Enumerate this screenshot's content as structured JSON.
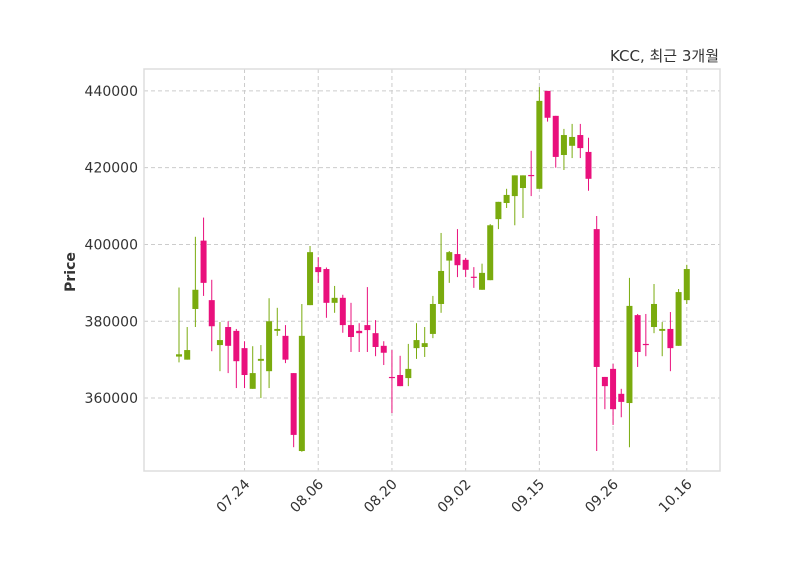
{
  "chart_data": {
    "type": "candlestick",
    "title": "KCC, 최근 3개월",
    "ylabel": "Price",
    "xlabel": "",
    "ylim": [
      341000,
      445700
    ],
    "yticks": [
      360000,
      380000,
      400000,
      420000,
      440000
    ],
    "grid": true,
    "colors": {
      "up": "#7aab0e",
      "down": "#e9107c",
      "grid": "#cccccc",
      "frame": "#dddddd"
    },
    "xticks": [
      {
        "index": 8,
        "label": "07.24"
      },
      {
        "index": 17,
        "label": "08.06"
      },
      {
        "index": 26,
        "label": "08.20"
      },
      {
        "index": 35,
        "label": "09.02"
      },
      {
        "index": 44,
        "label": "09.15"
      },
      {
        "index": 53,
        "label": "09.26"
      },
      {
        "index": 62,
        "label": "10.16"
      }
    ],
    "candles": [
      [
        370800,
        388800,
        369300,
        371400
      ],
      [
        370000,
        378500,
        370000,
        372500
      ],
      [
        383200,
        402000,
        378500,
        388200
      ],
      [
        401000,
        407000,
        386600,
        390000
      ],
      [
        385500,
        390800,
        372200,
        378700
      ],
      [
        373800,
        379800,
        367000,
        375100
      ],
      [
        378500,
        380000,
        366500,
        373600
      ],
      [
        377500,
        378000,
        362600,
        369600
      ],
      [
        373000,
        374800,
        362600,
        366000
      ],
      [
        362400,
        373500,
        362400,
        366500
      ],
      [
        369700,
        373800,
        360000,
        370200
      ],
      [
        367000,
        386000,
        362600,
        380000
      ],
      [
        377500,
        383500,
        376200,
        378000
      ],
      [
        376200,
        379000,
        369100,
        370000
      ],
      [
        366500,
        366500,
        347200,
        350400
      ],
      [
        346200,
        384500,
        346000,
        376200
      ],
      [
        384200,
        399600,
        384200,
        398000
      ],
      [
        394100,
        396700,
        390000,
        392800
      ],
      [
        393600,
        394000,
        380900,
        384800
      ],
      [
        384800,
        389200,
        382200,
        386100
      ],
      [
        386100,
        386900,
        377000,
        379000
      ],
      [
        379000,
        384800,
        372000,
        375900
      ],
      [
        377500,
        379500,
        372000,
        376900
      ],
      [
        379000,
        388900,
        372000,
        377700
      ],
      [
        376900,
        380300,
        370900,
        373300
      ],
      [
        373600,
        374800,
        368600,
        371800
      ],
      [
        365500,
        372500,
        356100,
        365300
      ],
      [
        366000,
        371000,
        363100,
        363100
      ],
      [
        365200,
        374100,
        363100,
        367600
      ],
      [
        373000,
        379500,
        370200,
        375100
      ],
      [
        373300,
        378500,
        370700,
        374300
      ],
      [
        376700,
        386600,
        375600,
        384500
      ],
      [
        384500,
        403000,
        382200,
        393100
      ],
      [
        395800,
        398300,
        390000,
        398000
      ],
      [
        397500,
        404000,
        391500,
        394600
      ],
      [
        396000,
        396500,
        391500,
        393400
      ],
      [
        391600,
        394100,
        388700,
        391500
      ],
      [
        388200,
        395000,
        388200,
        392600
      ],
      [
        390700,
        405300,
        390700,
        405000
      ],
      [
        406600,
        411100,
        404000,
        411100
      ],
      [
        410800,
        414500,
        409500,
        412900
      ],
      [
        412600,
        418000,
        405000,
        418000
      ],
      [
        414700,
        418000,
        406900,
        418000
      ],
      [
        418100,
        424400,
        412600,
        418000
      ],
      [
        414500,
        441000,
        414500,
        437400
      ],
      [
        440000,
        440000,
        432000,
        433000
      ],
      [
        433500,
        433500,
        420000,
        422800
      ],
      [
        423300,
        430100,
        419400,
        428500
      ],
      [
        425700,
        431400,
        422500,
        428000
      ],
      [
        428500,
        431400,
        422500,
        425100
      ],
      [
        424100,
        427800,
        414000,
        417100
      ],
      [
        404000,
        407400,
        346200,
        368100
      ],
      [
        365500,
        365500,
        357100,
        363100
      ],
      [
        367600,
        368900,
        353000,
        357100
      ],
      [
        361100,
        362400,
        355000,
        359000
      ],
      [
        358700,
        391300,
        347200,
        384000
      ],
      [
        381600,
        381900,
        368100,
        372000
      ],
      [
        374100,
        381900,
        370900,
        374000
      ],
      [
        378500,
        389700,
        376900,
        384500
      ],
      [
        377500,
        379800,
        370900,
        378000
      ],
      [
        378000,
        382400,
        367000,
        373000
      ],
      [
        373600,
        388400,
        373600,
        387600
      ],
      [
        385500,
        394700,
        384500,
        393600
      ]
    ]
  }
}
